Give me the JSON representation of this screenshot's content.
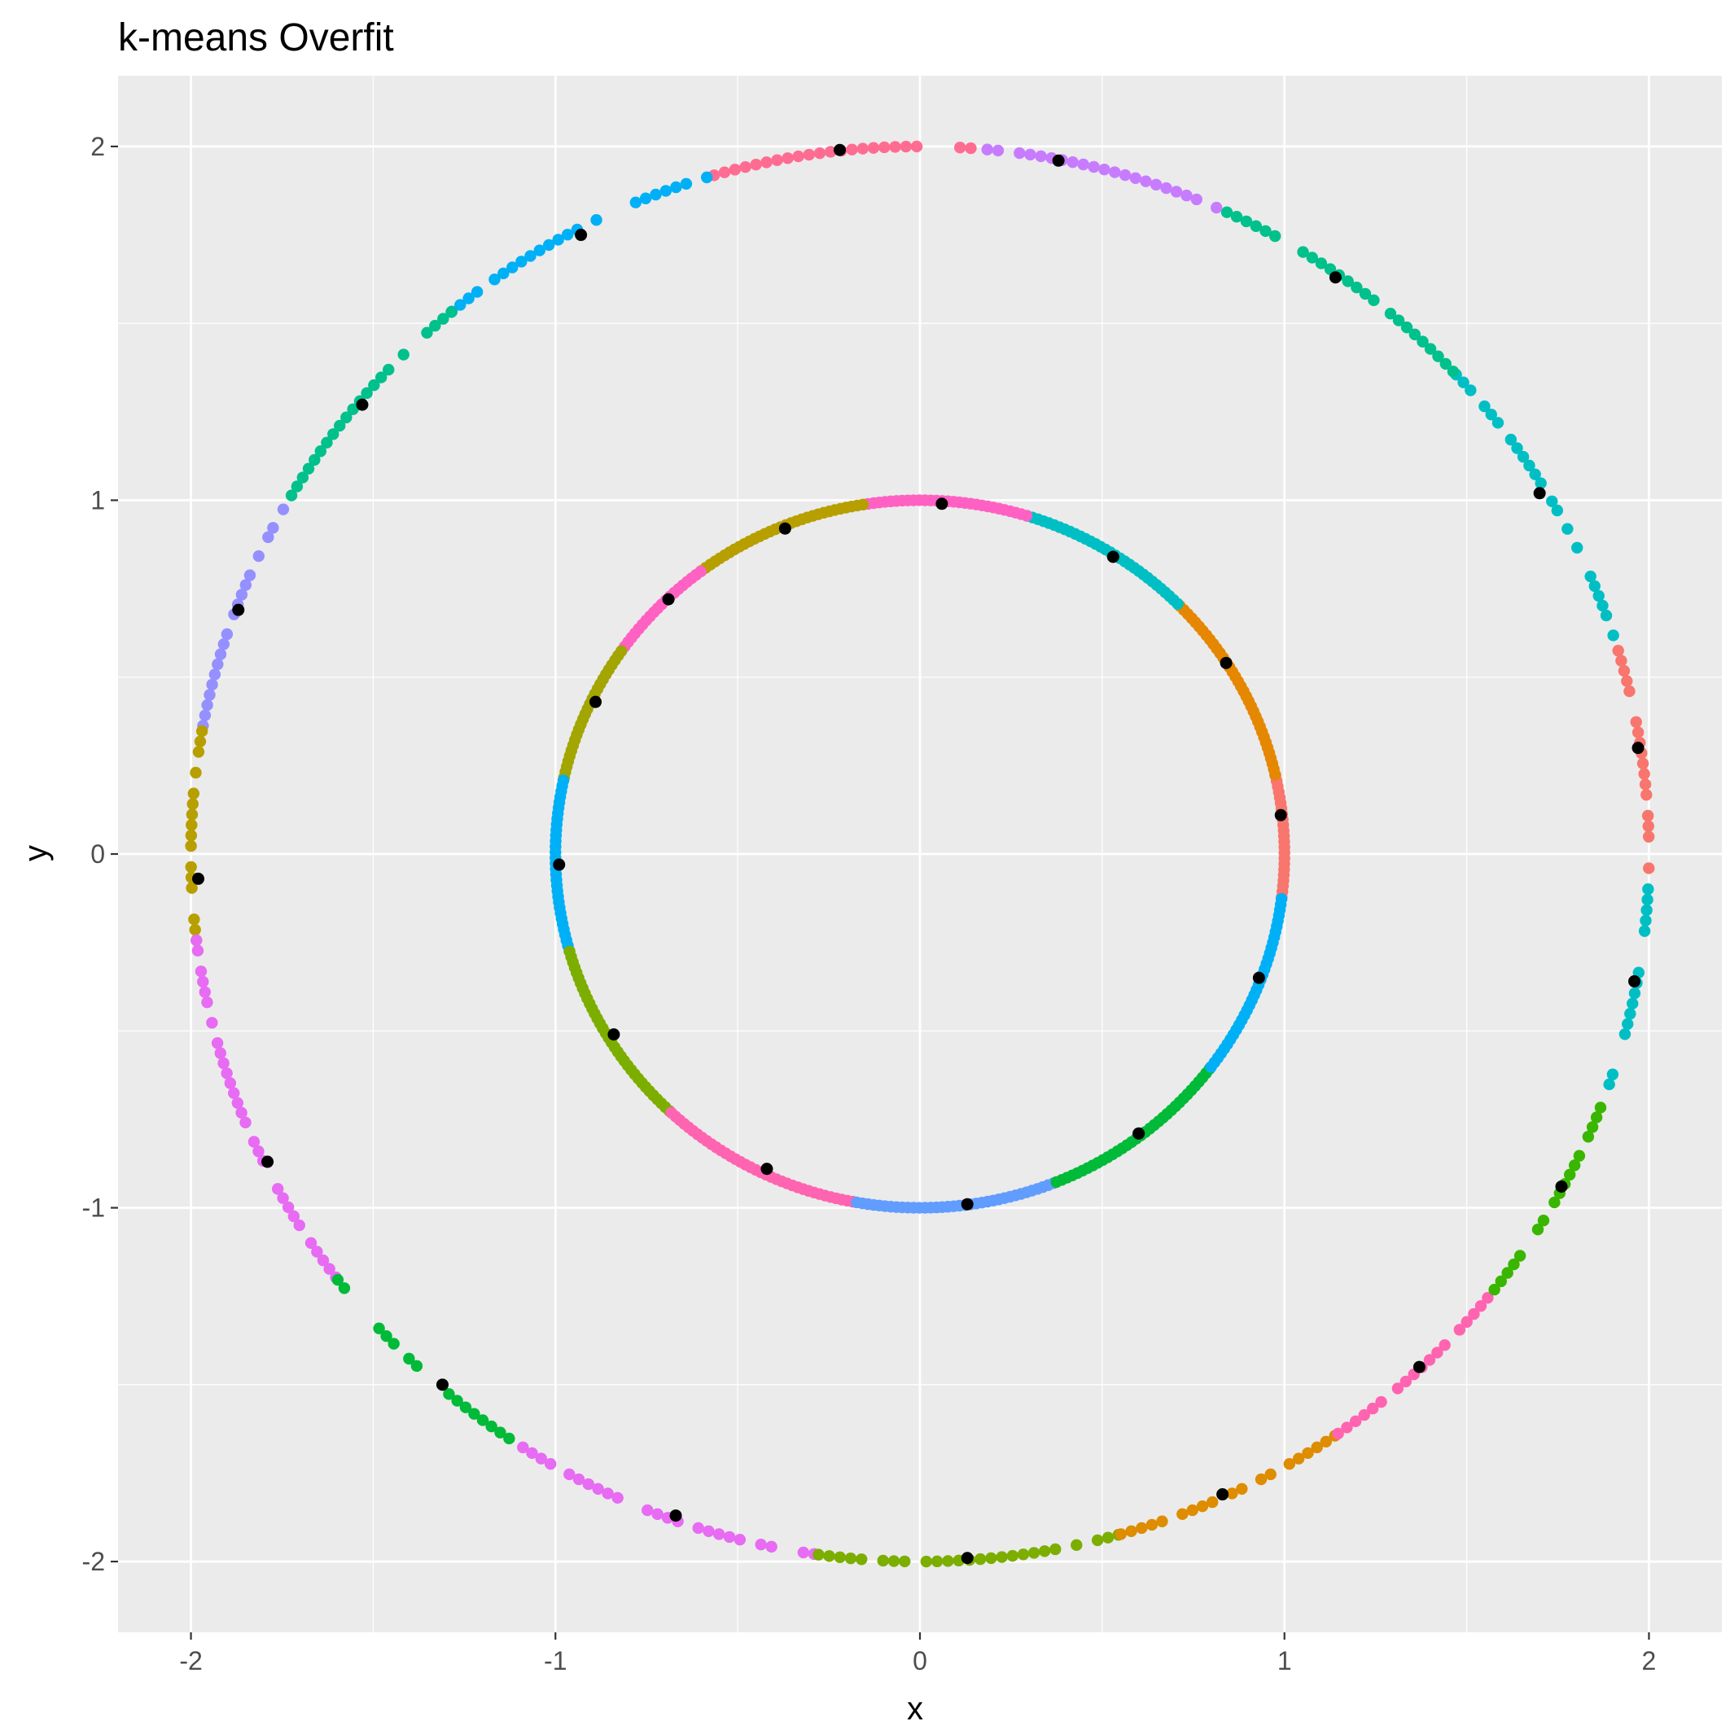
{
  "chart_data": {
    "type": "scatter",
    "title": "k-means Overfit",
    "xlabel": "x",
    "ylabel": "y",
    "xlim": [
      -2.2,
      2.2
    ],
    "ylim": [
      -2.2,
      2.2
    ],
    "x_ticks": [
      "-2",
      "-1",
      "0",
      "1",
      "2"
    ],
    "y_ticks": [
      "2",
      "1",
      "0",
      "-1",
      "-2"
    ],
    "grid": true,
    "legend": "none",
    "rings": [
      {
        "radius": 2,
        "segments": [
          {
            "from_deg": -2,
            "to_deg": 18,
            "color": "#F8766D"
          },
          {
            "from_deg": 18,
            "to_deg": 43,
            "color": "#00BFC4"
          },
          {
            "from_deg": 43,
            "to_deg": 66,
            "color": "#00C08B"
          },
          {
            "from_deg": 66,
            "to_deg": 86,
            "color": "#C77CFF"
          },
          {
            "from_deg": 86,
            "to_deg": 107,
            "color": "#FF6C91"
          },
          {
            "from_deg": 107,
            "to_deg": 130,
            "color": "#00B0F6"
          },
          {
            "from_deg": 130,
            "to_deg": 150,
            "color": "#00C08B"
          },
          {
            "from_deg": 150,
            "to_deg": 170,
            "color": "#9590FF"
          },
          {
            "from_deg": 170,
            "to_deg": 187,
            "color": "#B79F00"
          },
          {
            "from_deg": 187,
            "to_deg": 217,
            "color": "#E76BF3"
          },
          {
            "from_deg": 217,
            "to_deg": 237,
            "color": "#00BA38"
          },
          {
            "from_deg": 237,
            "to_deg": 262,
            "color": "#E76BF3"
          },
          {
            "from_deg": 262,
            "to_deg": 286,
            "color": "#7CAE00"
          },
          {
            "from_deg": 286,
            "to_deg": 305,
            "color": "#DE8C00"
          },
          {
            "from_deg": 305,
            "to_deg": 322,
            "color": "#FF64B0"
          },
          {
            "from_deg": 322,
            "to_deg": 341,
            "color": "#39B600"
          },
          {
            "from_deg": 341,
            "to_deg": 358,
            "color": "#00BFC4"
          }
        ]
      },
      {
        "radius": 1,
        "segments": [
          {
            "from_deg": -7,
            "to_deg": 13,
            "color": "#F8766D"
          },
          {
            "from_deg": 13,
            "to_deg": 45,
            "color": "#E58700"
          },
          {
            "from_deg": 45,
            "to_deg": 73,
            "color": "#00BFC4"
          },
          {
            "from_deg": 73,
            "to_deg": 99,
            "color": "#FF61C3"
          },
          {
            "from_deg": 99,
            "to_deg": 127,
            "color": "#B79F00"
          },
          {
            "from_deg": 127,
            "to_deg": 145,
            "color": "#FF61C3"
          },
          {
            "from_deg": 145,
            "to_deg": 168,
            "color": "#A3A500"
          },
          {
            "from_deg": 168,
            "to_deg": 196,
            "color": "#00B0F6"
          },
          {
            "from_deg": 196,
            "to_deg": 227,
            "color": "#7CAE00"
          },
          {
            "from_deg": 227,
            "to_deg": 260,
            "color": "#FF64B0"
          },
          {
            "from_deg": 260,
            "to_deg": 292,
            "color": "#619CFF"
          },
          {
            "from_deg": 292,
            "to_deg": 323,
            "color": "#00BA38"
          },
          {
            "from_deg": 323,
            "to_deg": 353,
            "color": "#00B0F6"
          }
        ]
      }
    ],
    "centers": [
      [
        -0.22,
        1.99
      ],
      [
        0.38,
        1.96
      ],
      [
        -0.93,
        1.75
      ],
      [
        1.14,
        1.63
      ],
      [
        -1.53,
        1.27
      ],
      [
        1.7,
        1.02
      ],
      [
        -1.87,
        0.69
      ],
      [
        1.97,
        0.3
      ],
      [
        -1.98,
        -0.07
      ],
      [
        1.96,
        -0.36
      ],
      [
        -1.79,
        -0.87
      ],
      [
        1.76,
        -0.94
      ],
      [
        -1.31,
        -1.5
      ],
      [
        1.37,
        -1.45
      ],
      [
        -0.67,
        -1.87
      ],
      [
        0.83,
        -1.81
      ],
      [
        0.13,
        -1.99
      ],
      [
        0.06,
        0.99
      ],
      [
        -0.37,
        0.92
      ],
      [
        0.53,
        0.84
      ],
      [
        -0.69,
        0.72
      ],
      [
        0.84,
        0.54
      ],
      [
        -0.89,
        0.43
      ],
      [
        0.99,
        0.11
      ],
      [
        -0.99,
        -0.03
      ],
      [
        0.93,
        -0.35
      ],
      [
        -0.84,
        -0.51
      ],
      [
        0.6,
        -0.79
      ],
      [
        -0.42,
        -0.89
      ],
      [
        0.13,
        -0.99
      ]
    ],
    "center_color": "#000000"
  }
}
